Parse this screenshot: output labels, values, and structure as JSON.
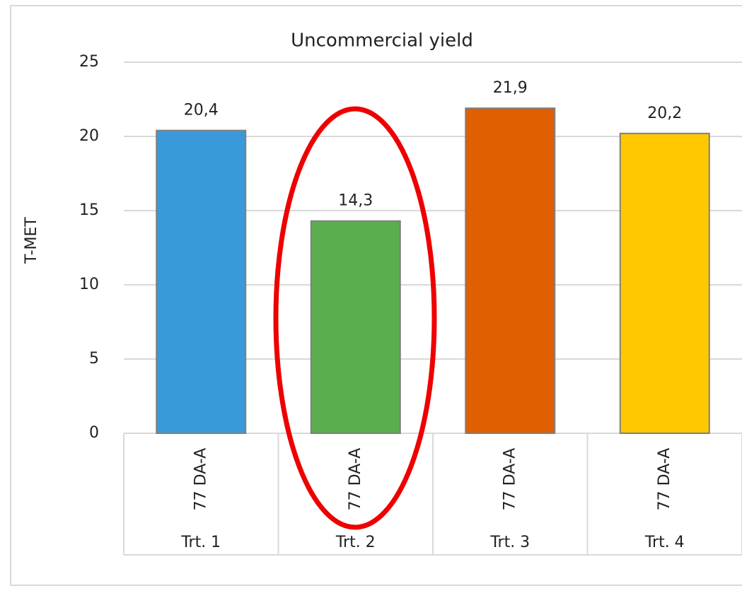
{
  "chart_data": {
    "type": "bar",
    "title": "Uncommercial yield",
    "y_label": "T-MET",
    "categories": [
      "77 DA-A",
      "77 DA-A",
      "77 DA-A",
      "77 DA-A"
    ],
    "groups": [
      "Trt. 1",
      "Trt. 2",
      "Trt. 3",
      "Trt. 4"
    ],
    "values": [
      20.4,
      14.3,
      21.9,
      20.2
    ],
    "value_labels": [
      "20,4",
      "14,3",
      "21,9",
      "20,2"
    ],
    "colors": [
      "#3a9ad9",
      "#5aae4e",
      "#e05f00",
      "#ffc800"
    ],
    "ylim": [
      0,
      25
    ],
    "yticks": [
      0,
      5,
      10,
      15,
      20,
      25
    ],
    "grid": true
  }
}
